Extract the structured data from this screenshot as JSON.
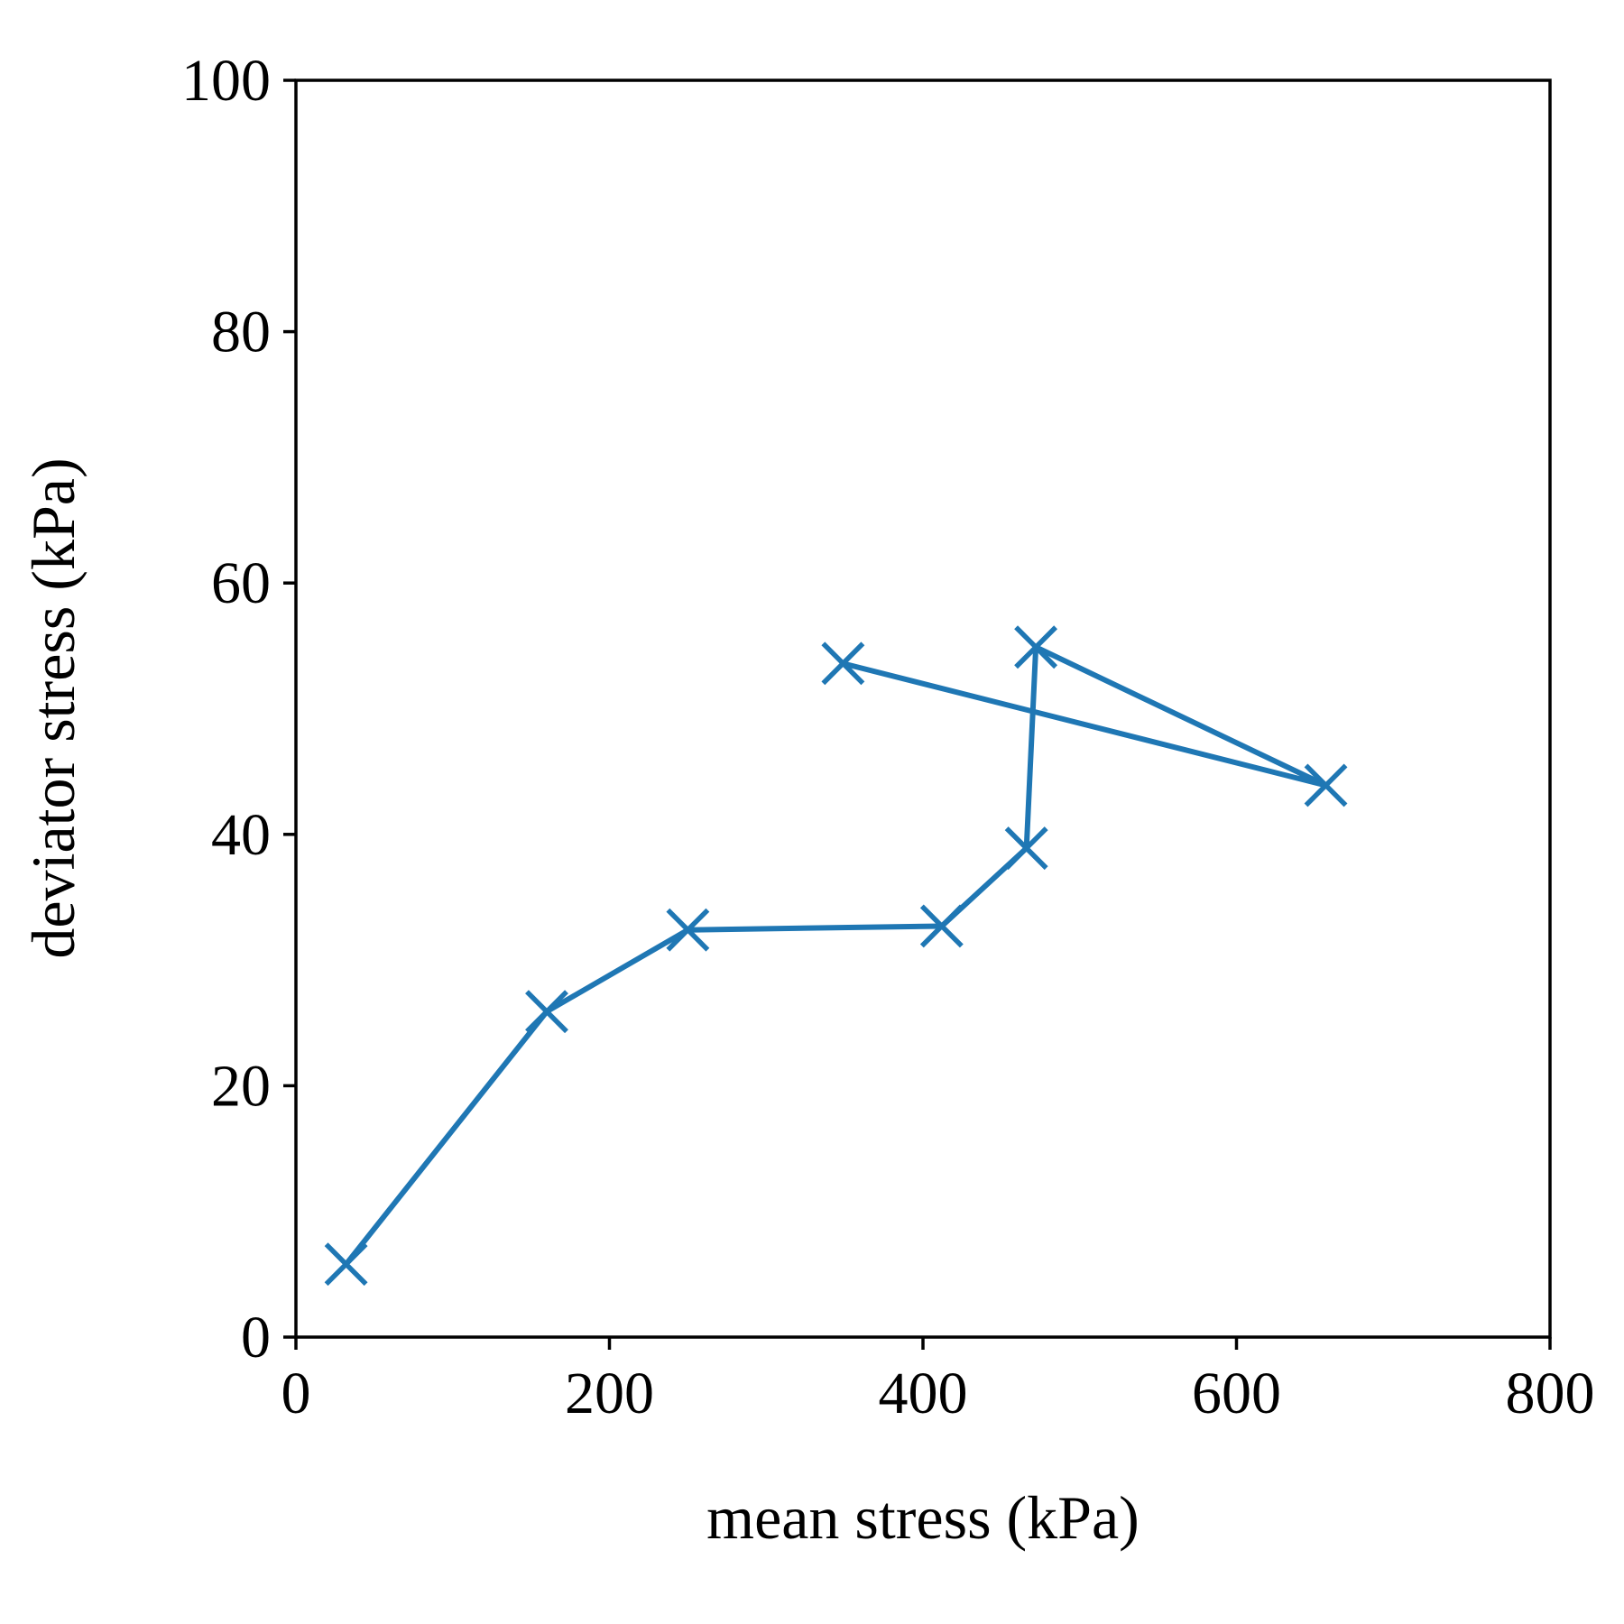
{
  "chart_data": {
    "type": "line",
    "title": "",
    "xlabel": "mean stress (kPa)",
    "ylabel": "deviator stress (kPa)",
    "xlim": [
      0,
      800
    ],
    "ylim": [
      0,
      100
    ],
    "xticks": [
      0,
      200,
      400,
      600,
      800
    ],
    "yticks": [
      0,
      20,
      40,
      60,
      80,
      100
    ],
    "grid": false,
    "legend": "none",
    "marker": "x",
    "series": [
      {
        "color": "#1f77b4",
        "x": [
          32,
          160,
          250,
          412,
          466,
          472,
          657,
          349
        ],
        "y": [
          5.8,
          25.9,
          32.4,
          32.7,
          38.9,
          54.9,
          43.9,
          53.6
        ]
      }
    ]
  }
}
